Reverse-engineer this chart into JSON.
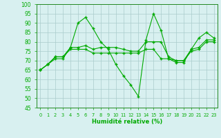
{
  "xlabel": "Humidité relative (%)",
  "background_color": "#d8f0f0",
  "grid_color": "#aacccc",
  "line_color": "#00aa00",
  "x": [
    0,
    1,
    2,
    3,
    4,
    5,
    6,
    7,
    8,
    9,
    10,
    11,
    12,
    13,
    14,
    15,
    16,
    17,
    18,
    19,
    20,
    21,
    22,
    23
  ],
  "line1": [
    65,
    68,
    71,
    71,
    77,
    90,
    93,
    87,
    80,
    76,
    68,
    62,
    57,
    51,
    81,
    95,
    86,
    71,
    69,
    69,
    76,
    82,
    85,
    82
  ],
  "line2": [
    65,
    68,
    72,
    72,
    77,
    77,
    78,
    76,
    77,
    77,
    77,
    76,
    75,
    75,
    80,
    80,
    80,
    72,
    70,
    70,
    76,
    77,
    81,
    81
  ],
  "line3": [
    65,
    68,
    72,
    72,
    76,
    76,
    76,
    74,
    74,
    74,
    74,
    74,
    74,
    74,
    76,
    76,
    71,
    71,
    70,
    70,
    75,
    76,
    80,
    80
  ]
}
